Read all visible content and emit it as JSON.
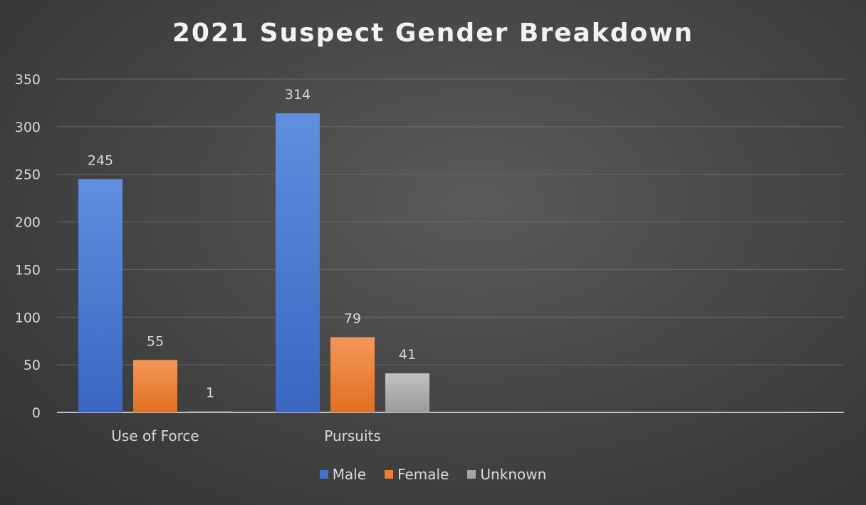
{
  "chart_data": {
    "type": "bar",
    "title": "2021 Suspect Gender Breakdown",
    "categories": [
      "Use of Force",
      "Pursuits"
    ],
    "series": [
      {
        "name": "Male",
        "values": [
          245,
          314
        ],
        "color": "#4472c4"
      },
      {
        "name": "Female",
        "values": [
          55,
          79
        ],
        "color": "#ed7d31"
      },
      {
        "name": "Unknown",
        "values": [
          1,
          41
        ],
        "color": "#a5a5a5"
      }
    ],
    "ylim": [
      0,
      350
    ],
    "yticks": [
      0,
      50,
      100,
      150,
      200,
      250,
      300,
      350
    ],
    "grid": true,
    "legend_position": "bottom",
    "data_labels": true
  }
}
